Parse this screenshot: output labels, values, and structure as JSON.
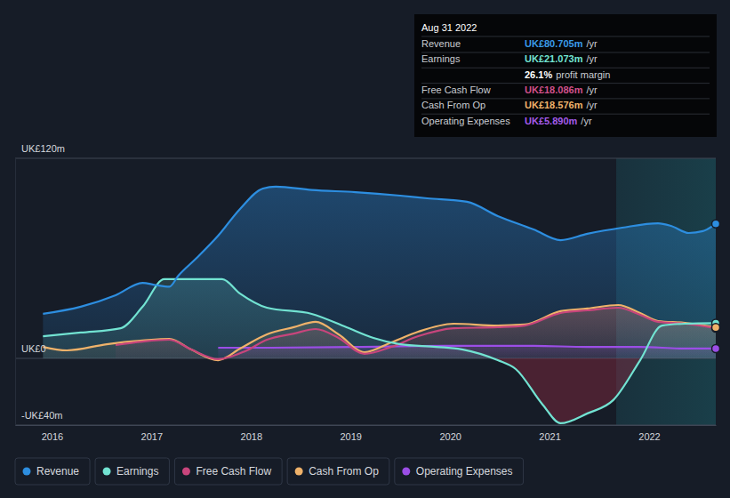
{
  "chart_data": {
    "type": "area",
    "xlim": [
      2015.63,
      2022.67
    ],
    "xticks": [
      2016,
      2017,
      2018,
      2019,
      2020,
      2021,
      2022
    ],
    "ylim": [
      -40,
      120
    ],
    "yticks": [
      {
        "value": -40,
        "label": "-UK£40m"
      },
      {
        "value": 0,
        "label": "UK£0"
      },
      {
        "value": 120,
        "label": "UK£120m"
      }
    ],
    "grid": true,
    "legend": "bottom",
    "marker": "circle",
    "shaded_range": [
      2021.67,
      2022.67
    ],
    "series": [
      {
        "name": "Revenue",
        "color": "#2d8ee0",
        "x": [
          2015.91,
          2016.29,
          2016.64,
          2016.91,
          2017.04,
          2017.18,
          2017.27,
          2017.45,
          2017.67,
          2017.89,
          2018.12,
          2018.25,
          2018.61,
          2019.05,
          2019.5,
          2019.77,
          2020.17,
          2020.48,
          2020.84,
          2021.11,
          2021.38,
          2021.73,
          2022.09,
          2022.22,
          2022.4,
          2022.54,
          2022.67
        ],
        "values": [
          26.7,
          31,
          37.9,
          45.3,
          44,
          43,
          49.6,
          60,
          73.6,
          89.6,
          101.9,
          103,
          101,
          99.7,
          97.6,
          96,
          93.9,
          85.3,
          77.3,
          70.9,
          74.7,
          78.4,
          81,
          79.5,
          75.2,
          76.3,
          80.7
        ]
      },
      {
        "name": "Earnings",
        "color": "#72e3d2",
        "x": [
          2015.91,
          2016.29,
          2016.69,
          2016.91,
          2017.13,
          2017.27,
          2017.71,
          2017.89,
          2018.16,
          2018.61,
          2018.96,
          2019.23,
          2019.5,
          2019.86,
          2020.13,
          2020.48,
          2020.66,
          2020.93,
          2021.11,
          2021.38,
          2021.64,
          2021.91,
          2022.13,
          2022.36,
          2022.67
        ],
        "values": [
          13.3,
          15.5,
          18.1,
          30.9,
          47.5,
          47.5,
          47.5,
          38.9,
          30.4,
          26.7,
          18.7,
          12.3,
          8.5,
          6.9,
          5.3,
          -1.1,
          -6.4,
          -27.7,
          -38.9,
          -33,
          -25,
          -1.1,
          19.7,
          20.8,
          21.1
        ]
      },
      {
        "name": "Free Cash Flow",
        "color": "#c8457c",
        "x": [
          2016.64,
          2016.91,
          2017.18,
          2017.4,
          2017.67,
          2017.94,
          2018.16,
          2018.43,
          2018.65,
          2018.88,
          2019.14,
          2019.41,
          2019.68,
          2020.04,
          2020.48,
          2020.75,
          2021.11,
          2021.38,
          2021.69,
          2021.91,
          2022.09,
          2022.36,
          2022.67
        ],
        "values": [
          8,
          10.1,
          11.2,
          5.3,
          -0.5,
          4.3,
          11.2,
          14.9,
          17.6,
          12.3,
          2.7,
          6.9,
          13.3,
          18.1,
          18.7,
          19.7,
          27.2,
          28.8,
          30.4,
          26.1,
          21.9,
          20.8,
          18.1
        ]
      },
      {
        "name": "Cash From Op",
        "color": "#efb26a",
        "x": [
          2015.91,
          2016.15,
          2016.55,
          2016.91,
          2017.18,
          2017.4,
          2017.67,
          2017.89,
          2018.16,
          2018.43,
          2018.65,
          2018.88,
          2019.14,
          2019.41,
          2019.68,
          2020.04,
          2020.48,
          2020.75,
          2021.11,
          2021.38,
          2021.69,
          2021.91,
          2022.09,
          2022.36,
          2022.67
        ],
        "values": [
          6.9,
          4.8,
          8.5,
          10.7,
          11.7,
          5.3,
          -1.1,
          5.9,
          14.4,
          18.7,
          21.9,
          14.4,
          3.7,
          9.6,
          16,
          20.8,
          19.7,
          20.3,
          28.3,
          29.9,
          32,
          27.2,
          22.4,
          21.3,
          18.6
        ]
      },
      {
        "name": "Operating Expenses",
        "color": "#9b4ee6",
        "x": [
          2017.67,
          2018.16,
          2019.05,
          2019.95,
          2020.84,
          2021.38,
          2021.91,
          2022.36,
          2022.67
        ],
        "values": [
          6.4,
          6.4,
          6.9,
          7.5,
          7.5,
          6.9,
          6.9,
          5.9,
          5.9
        ]
      }
    ],
    "tooltip": {
      "title": "Aug 31 2022",
      "rows": [
        {
          "label": "Revenue",
          "value": "UK£80.705m",
          "unit": "/yr",
          "color": "#3a9be8"
        },
        {
          "label": "Earnings",
          "value": "UK£21.073m",
          "unit": "/yr",
          "color": "#72e3d2"
        },
        {
          "value": "26.1%",
          "unit": "profit margin",
          "color": "#ffffff"
        },
        {
          "label": "Free Cash Flow",
          "value": "UK£18.086m",
          "unit": "/yr",
          "color": "#d0508a"
        },
        {
          "label": "Cash From Op",
          "value": "UK£18.576m",
          "unit": "/yr",
          "color": "#efb26a"
        },
        {
          "label": "Operating Expenses",
          "value": "UK£5.890m",
          "unit": "/yr",
          "color": "#a35bea"
        }
      ]
    }
  }
}
